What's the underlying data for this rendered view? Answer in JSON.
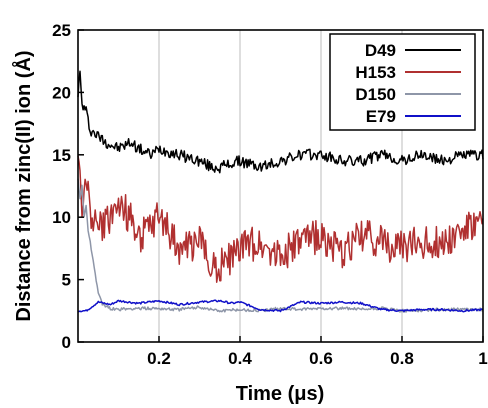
{
  "chart_data": {
    "type": "line",
    "xlabel": "Time (μs)",
    "ylabel": "Distance from zinc(II) ion (Å)",
    "xlim": [
      0,
      1
    ],
    "ylim": [
      0,
      25
    ],
    "xticks": [
      0.2,
      0.4,
      0.6,
      0.8,
      1
    ],
    "xtick_labels": [
      "0.2",
      "0.4",
      "0.6",
      "0.8",
      "1"
    ],
    "yticks": [
      0,
      5,
      10,
      15,
      20,
      25
    ],
    "ytick_labels": [
      "0",
      "5",
      "10",
      "15",
      "20",
      "25"
    ],
    "grid": "vertical",
    "legend_position": "top-right",
    "series": [
      {
        "name": "D49",
        "color": "#000000",
        "x": [
          0,
          0.005,
          0.01,
          0.02,
          0.03,
          0.05,
          0.07,
          0.1,
          0.13,
          0.15,
          0.18,
          0.2,
          0.25,
          0.3,
          0.33,
          0.35,
          0.4,
          0.45,
          0.5,
          0.55,
          0.6,
          0.65,
          0.7,
          0.75,
          0.8,
          0.85,
          0.9,
          0.95,
          1.0
        ],
        "y": [
          20,
          21.5,
          19,
          18.5,
          17,
          16.5,
          16,
          15.5,
          16,
          15.5,
          15,
          15.5,
          15,
          14.5,
          14,
          14,
          14.5,
          14,
          14.5,
          15,
          15,
          14.5,
          14.5,
          15,
          14.5,
          15,
          14.5,
          15,
          15
        ]
      },
      {
        "name": "H153",
        "color": "#b03030",
        "x": [
          0,
          0.005,
          0.01,
          0.02,
          0.03,
          0.05,
          0.07,
          0.1,
          0.13,
          0.15,
          0.18,
          0.2,
          0.25,
          0.3,
          0.33,
          0.35,
          0.4,
          0.45,
          0.5,
          0.55,
          0.6,
          0.65,
          0.7,
          0.75,
          0.8,
          0.85,
          0.9,
          0.95,
          1.0
        ],
        "y": [
          15,
          13.5,
          11,
          12.5,
          10.5,
          9,
          9.5,
          11,
          10,
          8.5,
          9,
          10,
          7.5,
          8,
          6.5,
          6,
          7.5,
          8,
          7,
          8,
          8.5,
          7,
          8.5,
          8,
          7.5,
          8,
          8,
          9,
          9.5
        ]
      },
      {
        "name": "D150",
        "color": "#8e96a8",
        "x": [
          0,
          0.005,
          0.01,
          0.015,
          0.02,
          0.025,
          0.03,
          0.04,
          0.05,
          0.06,
          0.08,
          0.1,
          0.15,
          0.2,
          0.25,
          0.3,
          0.35,
          0.4,
          0.45,
          0.5,
          0.55,
          0.6,
          0.65,
          0.7,
          0.75,
          0.8,
          0.9,
          1.0
        ],
        "y": [
          13,
          11.5,
          12.5,
          10,
          11,
          9,
          8,
          6,
          4,
          3,
          2.7,
          2.6,
          2.7,
          2.7,
          2.6,
          2.8,
          2.5,
          2.6,
          2.5,
          2.7,
          2.6,
          2.7,
          2.7,
          2.6,
          2.7,
          2.5,
          2.6,
          2.6
        ]
      },
      {
        "name": "E79",
        "color": "#1010c8",
        "x": [
          0,
          0.02,
          0.05,
          0.08,
          0.1,
          0.15,
          0.2,
          0.25,
          0.3,
          0.35,
          0.38,
          0.4,
          0.45,
          0.5,
          0.55,
          0.6,
          0.65,
          0.7,
          0.75,
          0.8,
          0.85,
          0.9,
          0.95,
          1.0
        ],
        "y": [
          2.5,
          2.5,
          3.2,
          3.0,
          3.3,
          3.1,
          3.3,
          3.0,
          3.2,
          3.3,
          3.1,
          3.2,
          2.6,
          2.5,
          3.2,
          3.1,
          3.2,
          3.1,
          2.6,
          2.5,
          2.6,
          2.6,
          2.5,
          2.6
        ]
      }
    ]
  }
}
